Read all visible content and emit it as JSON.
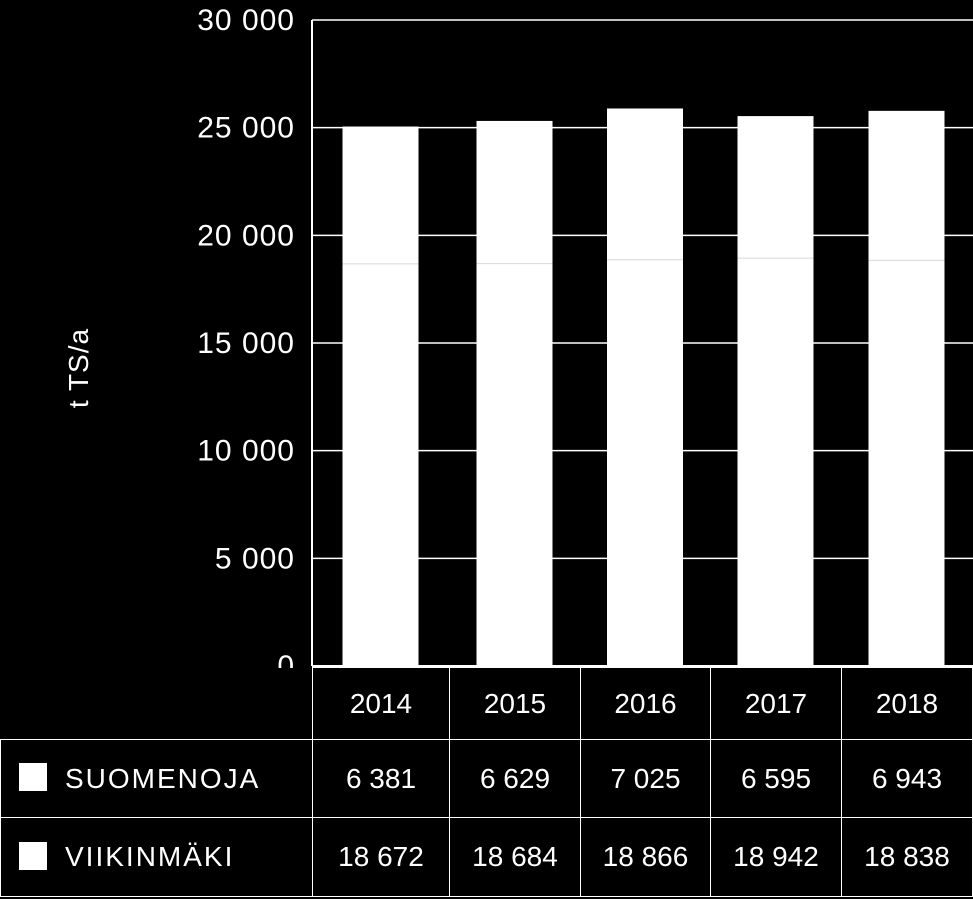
{
  "chart_data": {
    "type": "bar",
    "stacked": true,
    "categories": [
      "2014",
      "2015",
      "2016",
      "2017",
      "2018"
    ],
    "series": [
      {
        "name": "VIIKINMÄKI",
        "values": [
          18672,
          18684,
          18866,
          18942,
          18838
        ]
      },
      {
        "name": "SUOMENOJA",
        "values": [
          6381,
          6629,
          7025,
          6595,
          6943
        ]
      }
    ],
    "ylabel": "t TS/a",
    "ylim": [
      0,
      30000
    ],
    "yticks": [
      "0",
      "5 000",
      "10 000",
      "15 000",
      "20 000",
      "25 000",
      "30 000"
    ],
    "grid": true,
    "colors": {
      "bars": "#ffffff",
      "background": "#000000",
      "grid": "#ffffff"
    }
  },
  "table": {
    "rows": [
      {
        "label": "SUOMENOJA",
        "values": [
          "6 381",
          "6 629",
          "7 025",
          "6 595",
          "6 943"
        ]
      },
      {
        "label": "VIIKINMÄKI",
        "values": [
          "18 672",
          "18 684",
          "18 866",
          "18 942",
          "18 838"
        ]
      }
    ]
  }
}
